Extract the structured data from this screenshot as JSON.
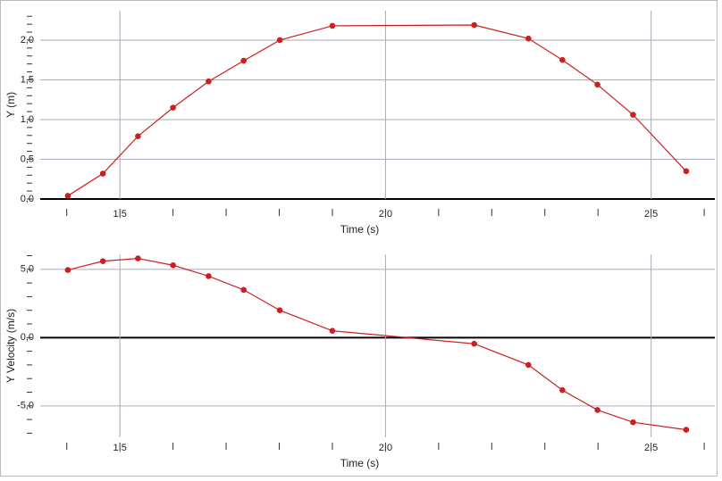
{
  "chart_data": [
    {
      "type": "line",
      "xlabel": "Time (s)",
      "ylabel": "Y (m)",
      "color": "#cc1f1f",
      "x": [
        1.402,
        1.468,
        1.534,
        1.6,
        1.667,
        1.733,
        1.801,
        1.9,
        2.167,
        2.269,
        2.333,
        2.399,
        2.466,
        2.566
      ],
      "values": [
        0.04,
        0.32,
        0.79,
        1.15,
        1.48,
        1.74,
        2.0,
        2.18,
        2.19,
        2.02,
        1.75,
        1.44,
        1.06,
        0.35
      ],
      "xlim": [
        1.35,
        2.62
      ],
      "ylim": [
        0,
        2.37
      ],
      "xticks": [
        {
          "value": 1.5,
          "label": "1,5"
        },
        {
          "value": 2.0,
          "label": "2,0"
        },
        {
          "value": 2.5,
          "label": "2,5"
        }
      ],
      "xminorticks": [
        1.4,
        1.6,
        1.7,
        1.8,
        1.9,
        2.1,
        2.2,
        2.3,
        2.4,
        2.6
      ],
      "yticks": [
        {
          "value": 0,
          "label": "0,0"
        },
        {
          "value": 0.5,
          "label": "0,5"
        },
        {
          "value": 1.0,
          "label": "1,0"
        },
        {
          "value": 1.5,
          "label": "1,5"
        },
        {
          "value": 2.0,
          "label": "2,0"
        }
      ],
      "yminorticks": [
        0.1,
        0.2,
        0.3,
        0.4,
        0.6,
        0.7,
        0.8,
        0.9,
        1.1,
        1.2,
        1.3,
        1.4,
        1.6,
        1.7,
        1.8,
        1.9,
        2.1,
        2.2,
        2.3
      ],
      "grid": true
    },
    {
      "type": "line",
      "xlabel": "Time (s)",
      "ylabel": "Y Velocity (m/s)",
      "color": "#cc1f1f",
      "x": [
        1.402,
        1.468,
        1.534,
        1.6,
        1.667,
        1.733,
        1.801,
        1.9,
        2.167,
        2.269,
        2.333,
        2.399,
        2.466,
        2.566
      ],
      "values": [
        4.95,
        5.6,
        5.8,
        5.3,
        4.5,
        3.5,
        2.0,
        0.5,
        -0.45,
        -2.0,
        -3.85,
        -5.3,
        -6.2,
        -6.75
      ],
      "xlim": [
        1.35,
        2.62
      ],
      "ylim": [
        -7.3,
        6.1
      ],
      "xticks": [
        {
          "value": 1.5,
          "label": "1,5"
        },
        {
          "value": 2.0,
          "label": "2,0"
        },
        {
          "value": 2.5,
          "label": "2,5"
        }
      ],
      "xminorticks": [
        1.4,
        1.6,
        1.7,
        1.8,
        1.9,
        2.1,
        2.2,
        2.3,
        2.4,
        2.6
      ],
      "yticks": [
        {
          "value": -5,
          "label": "-5,0"
        },
        {
          "value": 0,
          "label": "0,0"
        },
        {
          "value": 5,
          "label": "5,0"
        }
      ],
      "yminorticks": [
        -7,
        -6,
        -4,
        -3,
        -2,
        -1,
        1,
        2,
        3,
        4,
        6
      ],
      "grid": true
    }
  ]
}
